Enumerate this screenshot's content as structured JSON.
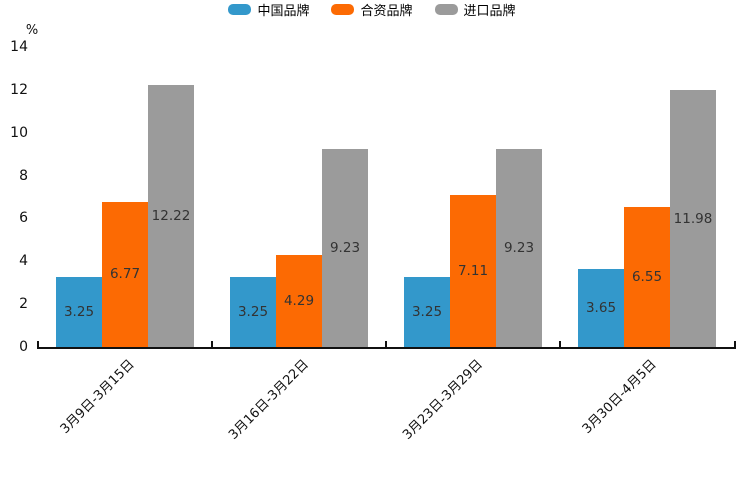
{
  "chart_data": {
    "type": "bar",
    "title": "",
    "unit_label": "%",
    "categories": [
      "3月9日-3月15日",
      "3月16日-3月22日",
      "3月23日-3月29日",
      "3月30日-4月5日"
    ],
    "series": [
      {
        "name": "中国品牌",
        "color": "#3398cb",
        "values": [
          3.25,
          3.25,
          3.25,
          3.65
        ],
        "labels": [
          "3.25",
          "3.25",
          "3.25",
          "3.65"
        ]
      },
      {
        "name": "合资品牌",
        "color": "#fc6a03",
        "values": [
          6.77,
          4.29,
          7.11,
          6.55
        ],
        "labels": [
          "6.77",
          "4.29",
          "7.11",
          "6.55"
        ]
      },
      {
        "name": "进口品牌",
        "color": "#9b9b9b",
        "values": [
          12.22,
          9.23,
          9.23,
          11.98
        ],
        "labels": [
          "12.22",
          "9.23",
          "9.23",
          "11.98"
        ]
      }
    ],
    "ylim": [
      0,
      14
    ],
    "y_ticks": [
      0,
      2,
      4,
      6,
      8,
      10,
      12,
      14
    ],
    "grid": false,
    "legend_position": "top-center",
    "value_label_position": "inside-center",
    "xtick_rotation": 45
  },
  "colors": {
    "background": "#ffffff",
    "axis": "#111111",
    "value_label": "#333333",
    "tick_text": "#111111"
  }
}
